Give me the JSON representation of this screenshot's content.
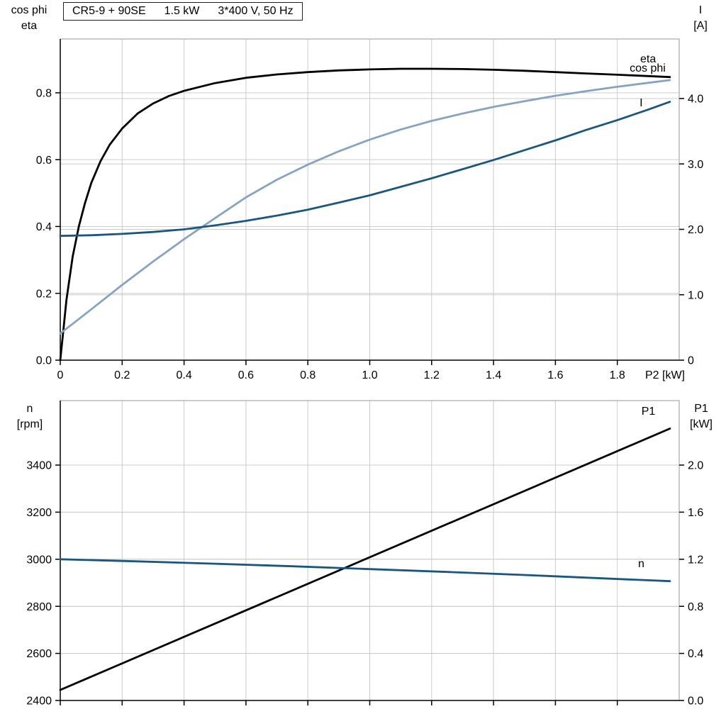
{
  "title_box": {
    "segments": [
      "CR5-9 + 90SE",
      "1.5 kW",
      "3*400 V, 50 Hz"
    ]
  },
  "colors": {
    "black": "#000000",
    "dark_blue": "#1b567f",
    "light_blue": "#87a3c3",
    "grid": "#cccccc",
    "frame": "#999999"
  },
  "chart_data": [
    {
      "id": "top",
      "type": "line",
      "title": "CR5-9 + 90SE  1.5 kW  3*400 V, 50 Hz",
      "x_axis": {
        "min": 0,
        "max": 2.0,
        "ticks": [
          0,
          0.2,
          0.4,
          0.6,
          0.8,
          1.0,
          1.2,
          1.4,
          1.6,
          1.8
        ],
        "tick_labels": [
          "0",
          "0.2",
          "0.4",
          "0.6",
          "0.8",
          "1.0",
          "1.2",
          "1.4",
          "1.6",
          "1.8"
        ],
        "end_label": "P2 [kW]"
      },
      "left_axis": {
        "title_lines": [
          "cos phi",
          "eta"
        ],
        "min": 0,
        "max": 0.961,
        "ticks": [
          0,
          0.2,
          0.4,
          0.6,
          0.8
        ],
        "tick_labels": [
          "0.0",
          "0.2",
          "0.4",
          "0.6",
          "0.8"
        ]
      },
      "right_axis": {
        "title_lines": [
          "I",
          "[A]"
        ],
        "min": 0,
        "max": 4.91,
        "ticks": [
          0,
          1,
          2,
          3,
          4
        ],
        "tick_labels": [
          "0",
          "1.0",
          "2.0",
          "3.0",
          "4.0"
        ]
      },
      "series": [
        {
          "name": "eta",
          "label": "eta",
          "axis": "left",
          "color_key": "black",
          "label_x": 1.874,
          "label_y": 0.891,
          "x": [
            0,
            0.01,
            0.02,
            0.04,
            0.06,
            0.08,
            0.1,
            0.13,
            0.16,
            0.2,
            0.25,
            0.3,
            0.35,
            0.4,
            0.5,
            0.6,
            0.7,
            0.8,
            0.9,
            1.0,
            1.1,
            1.2,
            1.3,
            1.4,
            1.5,
            1.6,
            1.7,
            1.8,
            1.9,
            1.97
          ],
          "y": [
            0,
            0.09,
            0.18,
            0.31,
            0.4,
            0.47,
            0.53,
            0.595,
            0.645,
            0.693,
            0.738,
            0.768,
            0.79,
            0.806,
            0.829,
            0.845,
            0.855,
            0.862,
            0.867,
            0.87,
            0.872,
            0.872,
            0.871,
            0.869,
            0.866,
            0.862,
            0.858,
            0.854,
            0.85,
            0.847
          ]
        },
        {
          "name": "cos-phi",
          "label": "cos phi",
          "axis": "left",
          "color_key": "light_blue",
          "label_x": 1.84,
          "label_y": 0.863,
          "x": [
            0,
            0.1,
            0.2,
            0.3,
            0.4,
            0.5,
            0.6,
            0.7,
            0.8,
            0.9,
            1.0,
            1.1,
            1.2,
            1.3,
            1.4,
            1.5,
            1.6,
            1.7,
            1.8,
            1.9,
            1.97
          ],
          "y": [
            0.08,
            0.152,
            0.225,
            0.295,
            0.362,
            0.425,
            0.487,
            0.54,
            0.585,
            0.625,
            0.66,
            0.69,
            0.716,
            0.738,
            0.758,
            0.775,
            0.791,
            0.805,
            0.818,
            0.83,
            0.838
          ]
        },
        {
          "name": "current",
          "label": "I",
          "axis": "right",
          "color_key": "dark_blue",
          "label_x": 1.872,
          "label_y": 3.88,
          "x": [
            0,
            0.1,
            0.2,
            0.3,
            0.4,
            0.5,
            0.6,
            0.7,
            0.8,
            0.9,
            1.0,
            1.1,
            1.2,
            1.3,
            1.4,
            1.5,
            1.6,
            1.7,
            1.8,
            1.9,
            1.97
          ],
          "y": [
            1.9,
            1.91,
            1.93,
            1.96,
            2.0,
            2.06,
            2.13,
            2.21,
            2.3,
            2.41,
            2.52,
            2.65,
            2.78,
            2.92,
            3.06,
            3.21,
            3.36,
            3.52,
            3.67,
            3.83,
            3.95
          ]
        }
      ]
    },
    {
      "id": "bottom",
      "type": "line",
      "x_axis": {
        "min": 0,
        "max": 2.0,
        "ticks": [
          0,
          0.2,
          0.4,
          0.6,
          0.8,
          1.0,
          1.2,
          1.4,
          1.6,
          1.8
        ],
        "tick_labels": [],
        "end_label": ""
      },
      "left_axis": {
        "title_lines": [
          "n",
          "[rpm]"
        ],
        "min": 2400,
        "max": 3674,
        "ticks": [
          2400,
          2600,
          2800,
          3000,
          3200,
          3400
        ],
        "tick_labels": [
          "2400",
          "2600",
          "2800",
          "3000",
          "3200",
          "3400"
        ]
      },
      "right_axis": {
        "title_lines": [
          "P1",
          "[kW]"
        ],
        "min": 0,
        "max": 2.548,
        "ticks": [
          0,
          0.4,
          0.8,
          1.2,
          1.6,
          2.0
        ],
        "tick_labels": [
          "0.0",
          "0.4",
          "0.8",
          "1.2",
          "1.6",
          "2.0"
        ]
      },
      "series": [
        {
          "name": "p1",
          "label": "P1",
          "axis": "right",
          "color_key": "black",
          "label_x": 1.878,
          "label_y": 2.428,
          "x": [
            0,
            1.97
          ],
          "y": [
            0.09,
            2.31
          ]
        },
        {
          "name": "speed",
          "label": "n",
          "axis": "left",
          "color_key": "dark_blue",
          "label_x": 1.867,
          "label_y": 2966,
          "x": [
            0,
            0.25,
            0.5,
            0.75,
            1.0,
            1.25,
            1.5,
            1.75,
            1.97
          ],
          "y": [
            3000,
            2991,
            2981,
            2970,
            2958,
            2946,
            2933,
            2919,
            2907
          ]
        }
      ]
    }
  ]
}
